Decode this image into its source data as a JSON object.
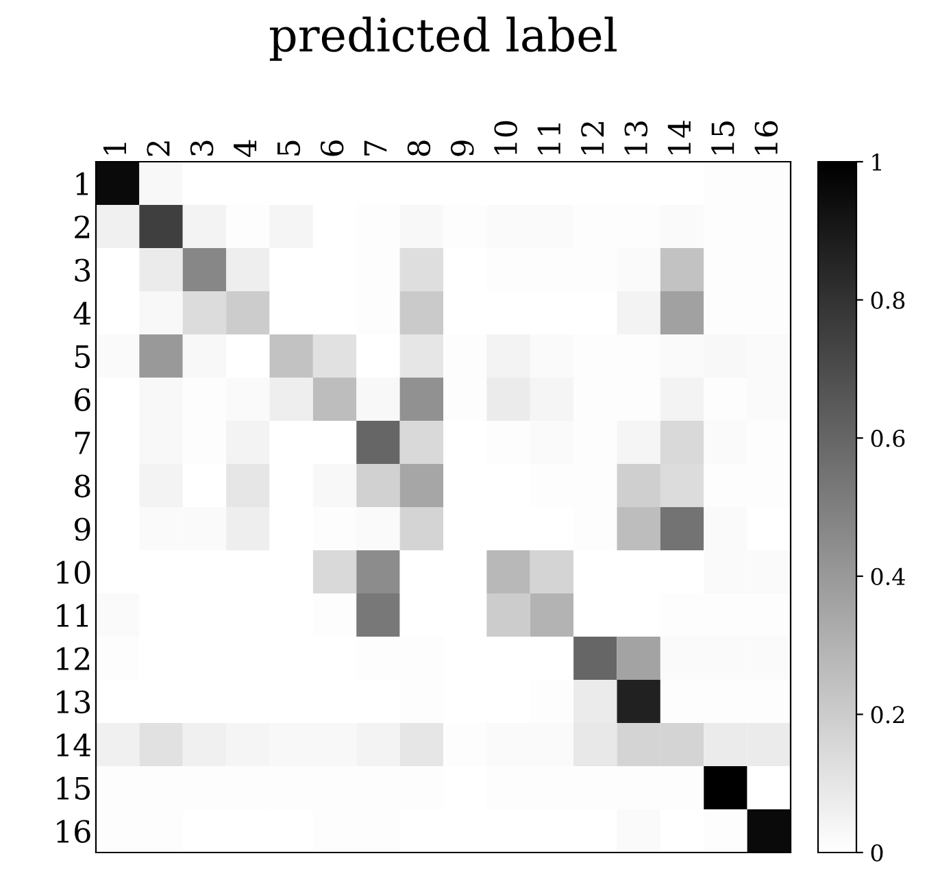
{
  "chart_data": {
    "type": "heatmap",
    "title": "predicted label",
    "categories": [
      "1",
      "2",
      "3",
      "4",
      "5",
      "6",
      "7",
      "8",
      "9",
      "10",
      "11",
      "12",
      "13",
      "14",
      "15",
      "16"
    ],
    "y_categories": [
      "1",
      "2",
      "3",
      "4",
      "5",
      "6",
      "7",
      "8",
      "9",
      "10",
      "11",
      "12",
      "13",
      "14",
      "15",
      "16"
    ],
    "cells": [
      [
        0.96,
        0.03,
        0,
        0,
        0,
        0,
        0,
        0,
        0,
        0,
        0,
        0,
        0,
        0,
        0.01,
        0.01
      ],
      [
        0.06,
        0.75,
        0.05,
        0.01,
        0.04,
        0,
        0.01,
        0.03,
        0.01,
        0.02,
        0.02,
        0.01,
        0.01,
        0.02,
        0.01,
        0.01
      ],
      [
        0,
        0.08,
        0.47,
        0.07,
        0,
        0,
        0.01,
        0.13,
        0,
        0.01,
        0.01,
        0.01,
        0.02,
        0.24,
        0.01,
        0.01
      ],
      [
        0,
        0.03,
        0.14,
        0.2,
        0,
        0,
        0.01,
        0.21,
        0,
        0,
        0,
        0,
        0.05,
        0.37,
        0.01,
        0.01
      ],
      [
        0.02,
        0.4,
        0.03,
        0,
        0.24,
        0.12,
        0,
        0.1,
        0.01,
        0.05,
        0.02,
        0.01,
        0.01,
        0.02,
        0.03,
        0.02
      ],
      [
        0,
        0.03,
        0.01,
        0.02,
        0.07,
        0.26,
        0.03,
        0.43,
        0.01,
        0.08,
        0.04,
        0.01,
        0.01,
        0.05,
        0.01,
        0.02
      ],
      [
        0,
        0.03,
        0.01,
        0.05,
        0,
        0,
        0.6,
        0.15,
        0,
        0.01,
        0.02,
        0.01,
        0.04,
        0.15,
        0.02,
        0.01
      ],
      [
        0,
        0.05,
        0,
        0.1,
        0,
        0.03,
        0.18,
        0.35,
        0,
        0,
        0.01,
        0.01,
        0.19,
        0.14,
        0.01,
        0.01
      ],
      [
        0,
        0.02,
        0.02,
        0.07,
        0,
        0.01,
        0.02,
        0.17,
        0,
        0,
        0,
        0.01,
        0.26,
        0.55,
        0.02,
        0
      ],
      [
        0,
        0,
        0,
        0,
        0,
        0.15,
        0.45,
        0,
        0,
        0.28,
        0.17,
        0,
        0,
        0,
        0.02,
        0.02
      ],
      [
        0.02,
        0,
        0,
        0,
        0,
        0.01,
        0.53,
        0,
        0,
        0.2,
        0.3,
        0,
        0,
        0.01,
        0.01,
        0.01
      ],
      [
        0.01,
        0,
        0,
        0,
        0,
        0,
        0.01,
        0.01,
        0,
        0,
        0,
        0.6,
        0.36,
        0.02,
        0.02,
        0.02
      ],
      [
        0,
        0,
        0,
        0,
        0,
        0,
        0,
        0.01,
        0,
        0,
        0.01,
        0.08,
        0.87,
        0.01,
        0.01,
        0.01
      ],
      [
        0.06,
        0.12,
        0.06,
        0.04,
        0.03,
        0.03,
        0.05,
        0.1,
        0.01,
        0.02,
        0.02,
        0.09,
        0.17,
        0.17,
        0.08,
        0.08
      ],
      [
        0.01,
        0.01,
        0.01,
        0.01,
        0.01,
        0.01,
        0.01,
        0.01,
        0,
        0.01,
        0.01,
        0.01,
        0.01,
        0.01,
        1.0,
        0
      ],
      [
        0.01,
        0.01,
        0,
        0,
        0,
        0.01,
        0.01,
        0,
        0,
        0,
        0,
        0,
        0.02,
        0,
        0.01,
        0.96
      ]
    ],
    "clim": [
      0,
      1
    ],
    "cticks": [
      0,
      0.2,
      0.4,
      0.6,
      0.8,
      1
    ]
  }
}
